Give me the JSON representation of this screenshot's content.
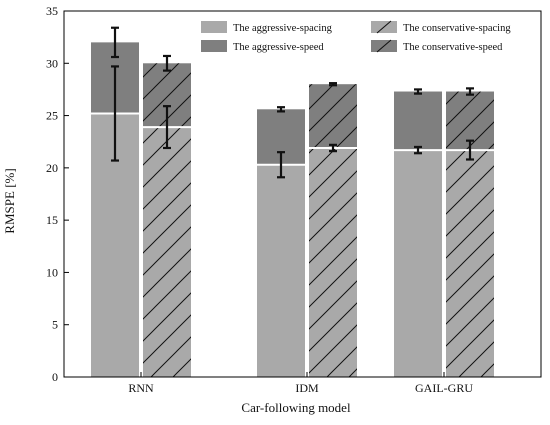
{
  "chart_data": {
    "type": "bar",
    "subtype": "stacked-grouped",
    "xlabel": "Car-following model",
    "ylabel": "RMSPE [%]",
    "ylim": [
      0,
      35
    ],
    "yticks": [
      0,
      5,
      10,
      15,
      20,
      25,
      30,
      35
    ],
    "categories": [
      "RNN",
      "IDM",
      "GAIL-GRU"
    ],
    "groups": [
      {
        "name": "aggressive",
        "hatched": false,
        "spacing": {
          "values": [
            25.2,
            20.3,
            21.7
          ],
          "errors": [
            4.5,
            1.2,
            0.3
          ]
        },
        "speed": {
          "totals": [
            32.0,
            25.6,
            27.3
          ],
          "errors": [
            1.4,
            0.2,
            0.2
          ]
        }
      },
      {
        "name": "conservative",
        "hatched": true,
        "spacing": {
          "values": [
            23.9,
            21.9,
            21.7
          ],
          "errors": [
            2.0,
            0.3,
            0.9
          ]
        },
        "speed": {
          "totals": [
            30.0,
            28.0,
            27.3
          ],
          "errors": [
            0.7,
            0.1,
            0.3
          ]
        }
      }
    ],
    "legend": {
      "position": "top-right",
      "entries": [
        {
          "label": "The aggressive-spacing",
          "color": "#a9a9a9",
          "hatched": false
        },
        {
          "label": "The conservative-spacing",
          "color": "#a9a9a9",
          "hatched": true
        },
        {
          "label": "The aggressive-speed",
          "color": "#7f7f7f",
          "hatched": false
        },
        {
          "label": "The conservative-speed",
          "color": "#7f7f7f",
          "hatched": true
        }
      ]
    },
    "colors": {
      "spacing": "#a9a9a9",
      "speed": "#7f7f7f",
      "hatch": "#111111",
      "error_bar": "#111111"
    },
    "grid": false
  }
}
